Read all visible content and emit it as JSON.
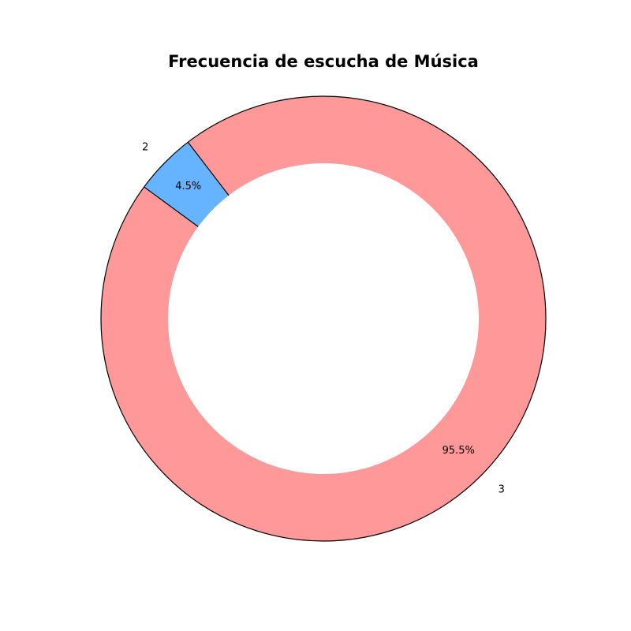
{
  "chart_data": {
    "type": "pie",
    "variant": "donut",
    "title": "Frecuencia de escucha de Música",
    "slices": [
      {
        "label": "3",
        "value": 95.5,
        "pct_label": "95.5%",
        "color": "#ff9999"
      },
      {
        "label": "2",
        "value": 4.5,
        "pct_label": "4.5%",
        "color": "#66b3ff"
      }
    ],
    "edge_color": "#000000",
    "hole_color": "#ffffff",
    "legend": "none",
    "grid": false
  }
}
